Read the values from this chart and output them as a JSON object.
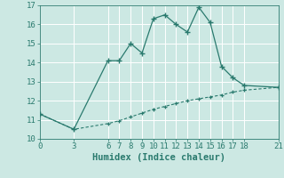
{
  "xlabel": "Humidex (Indice chaleur)",
  "line1_x": [
    0,
    3,
    6,
    7,
    8,
    9,
    10,
    11,
    12,
    13,
    14,
    15,
    16,
    17,
    18,
    21
  ],
  "line1_y": [
    11.3,
    10.5,
    14.1,
    14.1,
    15.0,
    14.5,
    16.3,
    16.5,
    16.0,
    15.6,
    16.9,
    16.1,
    13.8,
    13.2,
    12.8,
    12.7
  ],
  "line2_x": [
    0,
    3,
    6,
    7,
    8,
    9,
    10,
    11,
    12,
    13,
    14,
    15,
    16,
    17,
    18,
    21
  ],
  "line2_y": [
    11.3,
    10.5,
    10.8,
    10.95,
    11.15,
    11.35,
    11.55,
    11.7,
    11.85,
    12.0,
    12.1,
    12.2,
    12.3,
    12.45,
    12.55,
    12.7
  ],
  "line_color": "#2a7a6e",
  "bg_color": "#cce8e3",
  "grid_color": "#b0d8d2",
  "ylim": [
    10,
    17
  ],
  "xlim": [
    0,
    21
  ],
  "yticks": [
    10,
    11,
    12,
    13,
    14,
    15,
    16,
    17
  ],
  "xticks": [
    0,
    3,
    6,
    7,
    8,
    9,
    10,
    11,
    12,
    13,
    14,
    15,
    16,
    17,
    18,
    21
  ],
  "tick_fontsize": 6.5,
  "xlabel_fontsize": 7.5
}
